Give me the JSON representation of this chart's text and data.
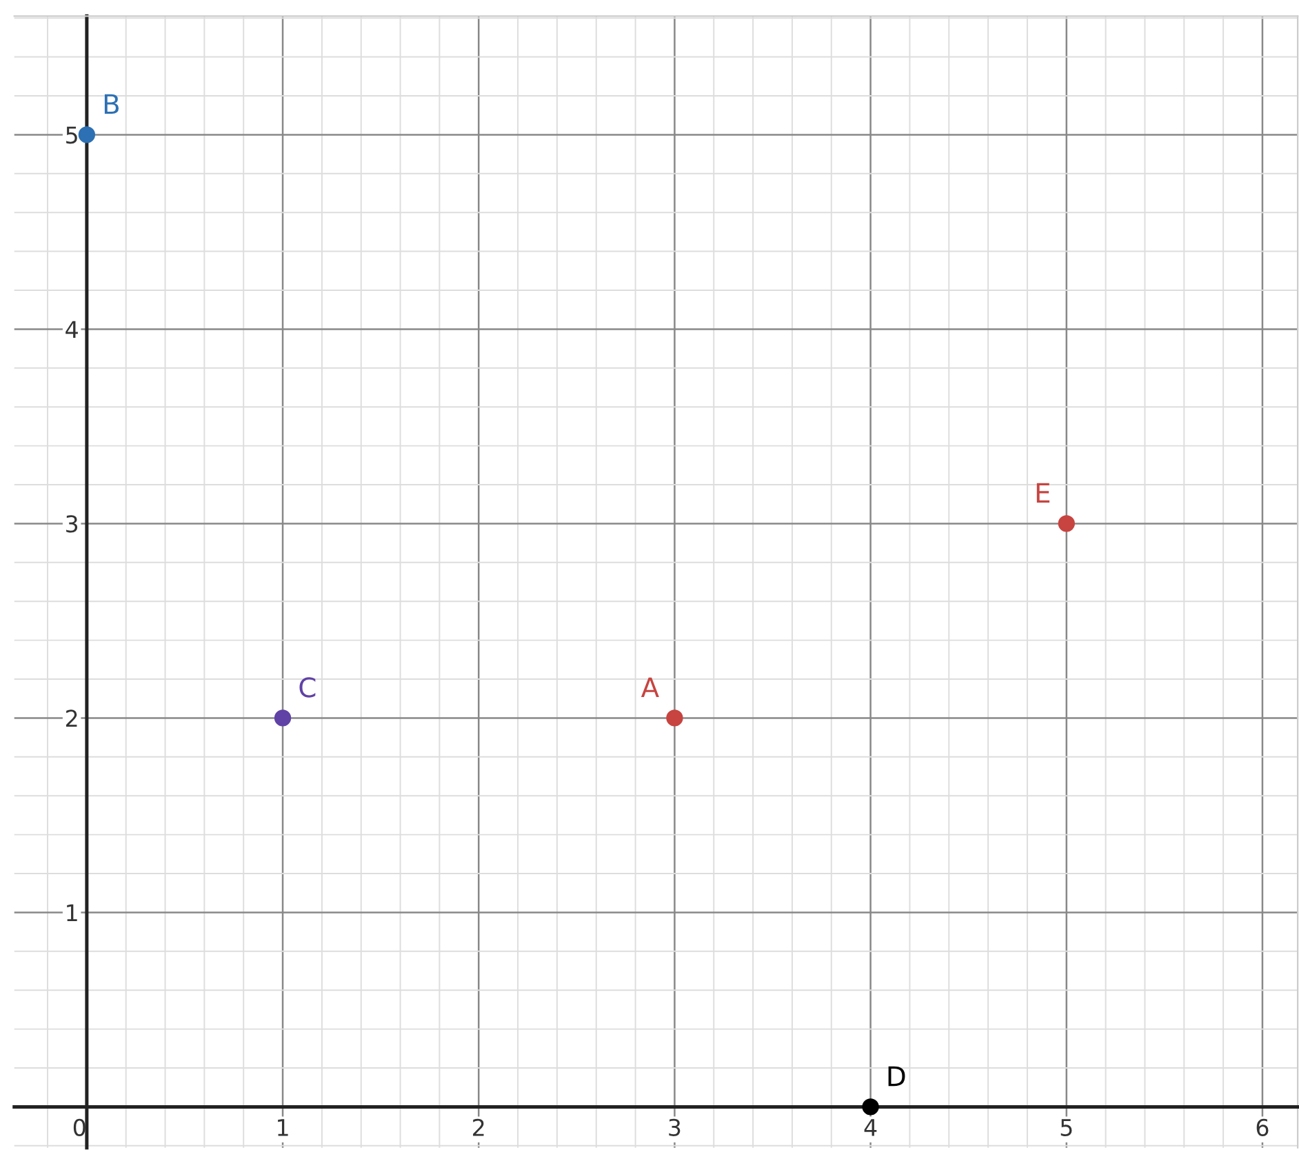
{
  "chart_data": {
    "type": "scatter",
    "xlim": [
      -0.37,
      6.18
    ],
    "ylim": [
      -0.21,
      5.61
    ],
    "xticks": [
      0,
      1,
      2,
      3,
      4,
      5,
      6
    ],
    "yticks": [
      1,
      2,
      3,
      4,
      5
    ],
    "grid": true,
    "marker": "circle",
    "series": [
      {
        "name": "A",
        "color": "#c74440",
        "x": [
          3
        ],
        "values": [
          2
        ]
      },
      {
        "name": "B",
        "color": "#2d70b3",
        "x": [
          0
        ],
        "values": [
          5
        ]
      },
      {
        "name": "C",
        "color": "#6042a6",
        "x": [
          1
        ],
        "values": [
          2
        ]
      },
      {
        "name": "D",
        "color": "#000000",
        "x": [
          4
        ],
        "values": [
          0
        ]
      },
      {
        "name": "E",
        "color": "#c74440",
        "x": [
          5
        ],
        "values": [
          3
        ]
      }
    ]
  }
}
